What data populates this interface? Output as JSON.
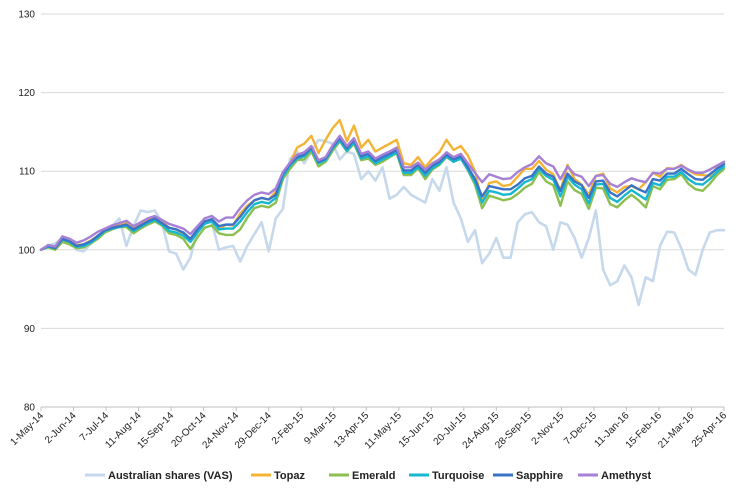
{
  "chart_data": {
    "type": "line",
    "title": "",
    "xlabel": "",
    "ylabel": "",
    "ylim": [
      80,
      130
    ],
    "yticks": [
      80,
      90,
      100,
      110,
      120,
      130
    ],
    "grid": "horizontal",
    "legend_position": "bottom",
    "x_tick_labels": [
      "1-May-14",
      "2-Jun-14",
      "7-Jul-14",
      "11-Aug-14",
      "15-Sep-14",
      "20-Oct-14",
      "24-Nov-14",
      "29-Dec-14",
      "2-Feb-15",
      "9-Mar-15",
      "13-Apr-15",
      "11-May-15",
      "15-Jun-15",
      "20-Jul-15",
      "24-Aug-15",
      "28-Sep-15",
      "2-Nov-15",
      "7-Dec-15",
      "11-Jan-16",
      "15-Feb-16",
      "21-Mar-16",
      "25-Apr-16"
    ],
    "series": [
      {
        "name": "Australian shares (VAS)",
        "color": "#c6d9ec",
        "values": [
          100,
          100.6,
          100.8,
          101.5,
          101.2,
          100,
          99.8,
          100.8,
          101.8,
          102.5,
          103,
          104,
          100.5,
          103,
          105,
          104.8,
          105,
          103.5,
          99.8,
          99.5,
          97.5,
          99,
          102.5,
          103.8,
          103.5,
          100,
          100.3,
          100.5,
          98.5,
          100.5,
          102,
          103.5,
          99.8,
          104,
          105.2,
          111.5,
          112.5,
          111,
          112.5,
          114,
          113.8,
          113.5,
          111.5,
          112.5,
          112.2,
          109,
          110,
          108.8,
          110.5,
          106.5,
          107,
          108,
          107,
          106.5,
          106,
          109,
          107.5,
          110.5,
          106,
          104,
          101,
          102.5,
          98.3,
          99.5,
          101.5,
          99,
          99,
          103.5,
          104.5,
          104.8,
          103.5,
          103,
          100,
          103.5,
          103.2,
          101.5,
          99,
          101.5,
          105,
          97.5,
          95.5,
          96,
          98,
          96.5,
          93,
          96.5,
          96,
          100.5,
          102.3,
          102.2,
          100.2,
          97.5,
          96.8,
          100,
          102.2,
          102.5,
          102.5
        ]
      },
      {
        "name": "Topaz",
        "color": "#f5b335",
        "values": [
          100,
          100.4,
          100.2,
          101.2,
          101,
          100.6,
          100.7,
          101.2,
          101.8,
          102.5,
          102.8,
          103.2,
          103.4,
          102.8,
          103.4,
          103.9,
          104.1,
          103.6,
          102.8,
          102.6,
          102.1,
          101.1,
          102.6,
          103.6,
          103.9,
          102.6,
          103.2,
          103.1,
          104.6,
          105.6,
          106.3,
          106.6,
          106.4,
          107.4,
          109.5,
          111,
          113,
          113.5,
          114.5,
          112.3,
          114,
          115.5,
          116.5,
          113.8,
          115.8,
          113,
          114,
          112.5,
          113,
          113.5,
          114,
          111,
          110.8,
          111.8,
          110.5,
          111.6,
          112.4,
          114,
          112.7,
          113.2,
          112,
          110,
          106,
          108.5,
          108.7,
          108.1,
          108.3,
          109.3,
          110.3,
          110.3,
          111.3,
          110.2,
          109.6,
          107.5,
          110.8,
          109,
          108.3,
          107,
          109.4,
          109.7,
          107.8,
          107.3,
          108,
          108.1,
          107.7,
          108.6,
          109.8,
          109.3,
          110.4,
          110.3,
          110.8,
          110.1,
          109.6,
          109.5,
          109.4,
          110.4,
          111.1
        ]
      },
      {
        "name": "Emerald",
        "color": "#8dbf50",
        "values": [
          100,
          100.3,
          100,
          101,
          100.7,
          100.2,
          100.3,
          100.8,
          101.4,
          102.2,
          102.6,
          102.9,
          102.9,
          102.1,
          102.7,
          103.2,
          103.6,
          103.1,
          102.1,
          101.9,
          101.4,
          100.1,
          101.6,
          102.8,
          103.1,
          102.1,
          101.9,
          101.9,
          102.6,
          104.1,
          105.3,
          105.6,
          105.4,
          106,
          109,
          110.3,
          111.4,
          111.5,
          112.5,
          110.6,
          111.2,
          112.6,
          113.8,
          112.5,
          113.5,
          111.4,
          111.6,
          110.8,
          111.2,
          111.8,
          112.3,
          109.5,
          109.5,
          110.4,
          109,
          110.2,
          110.8,
          111.8,
          111.2,
          111.7,
          110.1,
          108.3,
          105.3,
          106.9,
          106.6,
          106.3,
          106.5,
          107.1,
          107.9,
          108.4,
          109.9,
          108.7,
          108.2,
          105.6,
          108.7,
          107.6,
          107.1,
          105.2,
          107.9,
          107.8,
          105.8,
          105.4,
          106.3,
          107,
          106.3,
          105.4,
          108.1,
          107.7,
          108.9,
          109,
          109.6,
          108.4,
          107.7,
          107.5,
          108.4,
          109.5,
          110.3
        ]
      },
      {
        "name": "Turquoise",
        "color": "#17b8cf",
        "values": [
          100,
          100.4,
          100.2,
          101.3,
          101,
          100.4,
          100.5,
          100.9,
          101.6,
          102.4,
          102.7,
          102.9,
          103.1,
          102.4,
          102.9,
          103.4,
          103.8,
          103.2,
          102.4,
          102.2,
          101.8,
          101,
          102.2,
          103.3,
          103.6,
          102.6,
          102.7,
          102.7,
          103.6,
          104.8,
          105.8,
          106.1,
          105.9,
          106.6,
          109.3,
          110.7,
          111.6,
          111.9,
          112.8,
          111,
          111.4,
          112.9,
          113.9,
          112.6,
          113.7,
          111.6,
          111.9,
          111,
          111.5,
          111.9,
          112.4,
          109.8,
          109.8,
          110.5,
          109.4,
          110.4,
          110.9,
          111.9,
          111.2,
          111.6,
          110.2,
          108.6,
          106,
          107.5,
          107.3,
          107,
          107.1,
          107.8,
          108.6,
          109,
          110.3,
          109.4,
          108.9,
          106.8,
          109.3,
          108.3,
          107.7,
          105.9,
          108.3,
          108.4,
          106.6,
          106.1,
          106.9,
          107.6,
          107,
          106.4,
          108.5,
          108.2,
          109.3,
          109.3,
          109.9,
          109,
          108.4,
          108.3,
          109,
          109.9,
          110.6
        ]
      },
      {
        "name": "Sapphire",
        "color": "#3b73c6",
        "values": [
          100,
          100.5,
          100.2,
          101.4,
          101.1,
          100.5,
          100.7,
          101.1,
          101.8,
          102.5,
          102.8,
          103,
          103.2,
          102.6,
          103.1,
          103.6,
          104,
          103.4,
          102.8,
          102.6,
          102.2,
          101.4,
          102.6,
          103.6,
          103.9,
          103,
          103.2,
          103.2,
          104.2,
          105.4,
          106.3,
          106.6,
          106.4,
          107,
          109.7,
          110.9,
          111.8,
          112.1,
          113,
          111.2,
          111.6,
          113.1,
          114.2,
          112.9,
          114,
          111.9,
          112.2,
          111.3,
          111.8,
          112.2,
          112.7,
          110.1,
          110.1,
          110.8,
          109.8,
          110.7,
          111.2,
          112.1,
          111.5,
          111.9,
          110.5,
          109,
          106.8,
          108.1,
          107.9,
          107.7,
          107.7,
          108.3,
          109.1,
          109.4,
          110.6,
          109.7,
          109.3,
          107.5,
          109.7,
          108.7,
          108.2,
          106.6,
          108.7,
          108.8,
          107.3,
          106.8,
          107.5,
          108.2,
          107.7,
          107.3,
          109,
          108.8,
          109.7,
          109.7,
          110.3,
          109.6,
          109,
          108.9,
          109.6,
          110.3,
          110.9
        ]
      },
      {
        "name": "Amethyst",
        "color": "#a680d4",
        "values": [
          100,
          100.6,
          100.4,
          101.7,
          101.4,
          100.9,
          101.2,
          101.7,
          102.3,
          102.7,
          103.1,
          103.4,
          103.7,
          103,
          103.5,
          104,
          104.3,
          103.8,
          103.3,
          103,
          102.7,
          102,
          103,
          104,
          104.3,
          103.6,
          104.1,
          104.1,
          105.3,
          106.3,
          107,
          107.3,
          107.1,
          107.8,
          109.9,
          111.1,
          112.1,
          112.4,
          113.2,
          111.4,
          111.8,
          113.3,
          114.5,
          113.2,
          114.2,
          112.2,
          112.5,
          111.6,
          112.1,
          112.5,
          113,
          110.5,
          110.5,
          111.1,
          110.2,
          111,
          111.5,
          112.4,
          111.8,
          112.2,
          111,
          109.8,
          108.6,
          109.6,
          109.3,
          109,
          109.1,
          109.9,
          110.5,
          110.9,
          111.9,
          111,
          110.6,
          109,
          110.6,
          109.6,
          109.3,
          108.1,
          109.4,
          109.5,
          108.4,
          108,
          108.6,
          109.1,
          108.8,
          108.6,
          109.8,
          109.7,
          110.3,
          110.3,
          110.7,
          110.2,
          109.8,
          109.8,
          110.2,
          110.7,
          111.2
        ]
      }
    ]
  }
}
